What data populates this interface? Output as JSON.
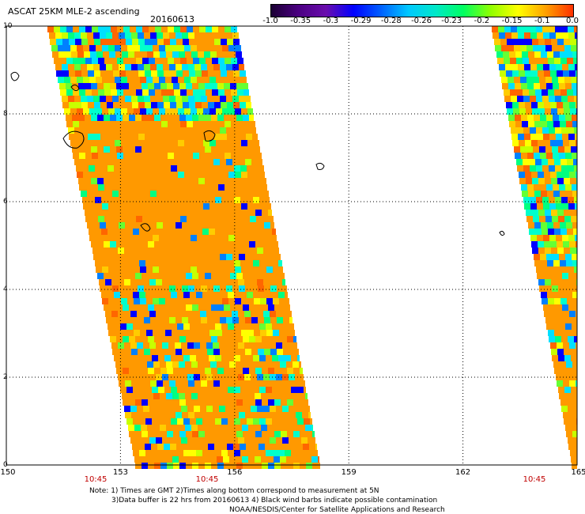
{
  "title": "ASCAT 25KM MLE-2 ascending",
  "date": "20160613",
  "colorbar": {
    "ticks": [
      "-1.0",
      "-0.35",
      "-0.3",
      "-0.29",
      "-0.28",
      "-0.26",
      "-0.23",
      "-0.2",
      "-0.15",
      "-0.1",
      "0.0"
    ],
    "colors": [
      "#1a0033",
      "#4b0082",
      "#6a0dad",
      "#0000ff",
      "#0060ff",
      "#00c8ff",
      "#00e8c8",
      "#00ff60",
      "#90ff00",
      "#ffff00",
      "#ffa000",
      "#ff3000"
    ]
  },
  "map": {
    "lat_labels": [
      "10",
      "8",
      "6",
      "4",
      "2",
      "0"
    ],
    "lon_labels": [
      "150",
      "153",
      "156",
      "159",
      "162",
      "165"
    ],
    "time_labels": [
      "10:45",
      "10:45",
      "10:45"
    ],
    "fill_color": "#ff9900"
  },
  "notes": {
    "line1": "Note: 1) Times are GMT 2)Times along bottom correspond to measurement at 5N",
    "line2": "3)Data buffer is 22 hrs from 20160613 4) Black wind barbs indicate possible contamination",
    "line3": "NOAA/NESDIS/Center for Satellite Applications and Research"
  }
}
